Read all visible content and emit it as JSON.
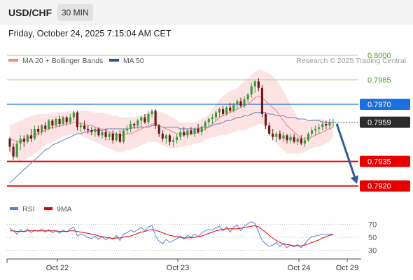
{
  "header": {
    "symbol": "USD/CHF",
    "timeframe": "30 MIN",
    "timestamp": "Friday, October 24, 2025 7:15:04 AM CET"
  },
  "chart_data": {
    "type": "candlestick",
    "legend": [
      {
        "name": "MA 20 + Bollinger Bands",
        "color": "#f28b82"
      },
      {
        "name": "MA 50",
        "color": "#2f4f8f"
      }
    ],
    "watermark": "Research © 2025 Trading Central",
    "x_ticks": [
      "Oct 22",
      "Oct 23",
      "Oct 24",
      "Oct 29"
    ],
    "ylim": [
      0.7913,
      0.8003
    ],
    "levels": [
      {
        "value": 0.8,
        "label": "0.8000",
        "style": "green-line"
      },
      {
        "value": 0.7985,
        "label": "0.7985",
        "style": "green-line"
      },
      {
        "value": 0.797,
        "label": "0.7970",
        "style": "blue-badge"
      },
      {
        "value": 0.7959,
        "label": "0.7959",
        "style": "current-price"
      },
      {
        "value": 0.7935,
        "label": "0.7935",
        "style": "red-badge"
      },
      {
        "value": 0.792,
        "label": "0.7920",
        "style": "red-badge"
      }
    ],
    "current_price": 0.7959,
    "target": 0.792,
    "candles": [
      [
        0.7949,
        0.795,
        0.7941,
        0.7944
      ],
      [
        0.7944,
        0.7946,
        0.7936,
        0.7938
      ],
      [
        0.7938,
        0.7948,
        0.7937,
        0.7946
      ],
      [
        0.7946,
        0.7951,
        0.7942,
        0.7949
      ],
      [
        0.7949,
        0.7951,
        0.7944,
        0.7947
      ],
      [
        0.7947,
        0.7952,
        0.7946,
        0.7951
      ],
      [
        0.7951,
        0.7955,
        0.7947,
        0.7949
      ],
      [
        0.7949,
        0.7957,
        0.7948,
        0.7955
      ],
      [
        0.7955,
        0.7957,
        0.7951,
        0.7953
      ],
      [
        0.7953,
        0.7958,
        0.7951,
        0.7957
      ],
      [
        0.7957,
        0.7959,
        0.7953,
        0.7955
      ],
      [
        0.7955,
        0.7961,
        0.7954,
        0.796
      ],
      [
        0.796,
        0.7961,
        0.7955,
        0.7957
      ],
      [
        0.7957,
        0.7962,
        0.7956,
        0.7961
      ],
      [
        0.7961,
        0.7963,
        0.7956,
        0.7958
      ],
      [
        0.7958,
        0.7963,
        0.7957,
        0.7962
      ],
      [
        0.7962,
        0.7963,
        0.7957,
        0.7959
      ],
      [
        0.7959,
        0.7964,
        0.7958,
        0.7962
      ],
      [
        0.7962,
        0.7966,
        0.796,
        0.7965
      ],
      [
        0.7965,
        0.7966,
        0.7954,
        0.7956
      ],
      [
        0.7956,
        0.7959,
        0.7953,
        0.7957
      ],
      [
        0.7957,
        0.796,
        0.7954,
        0.7955
      ],
      [
        0.7955,
        0.7957,
        0.7952,
        0.7954
      ],
      [
        0.7954,
        0.7956,
        0.7951,
        0.7953
      ],
      [
        0.7953,
        0.7956,
        0.795,
        0.7955
      ],
      [
        0.7955,
        0.7956,
        0.795,
        0.7951
      ],
      [
        0.7951,
        0.7954,
        0.7949,
        0.7953
      ],
      [
        0.7953,
        0.7955,
        0.7948,
        0.795
      ],
      [
        0.795,
        0.7953,
        0.7948,
        0.7952
      ],
      [
        0.7952,
        0.7954,
        0.7946,
        0.7948
      ],
      [
        0.7948,
        0.7953,
        0.7947,
        0.7952
      ],
      [
        0.7952,
        0.7954,
        0.7946,
        0.7947
      ],
      [
        0.7947,
        0.7955,
        0.7946,
        0.7954
      ],
      [
        0.7954,
        0.7957,
        0.7952,
        0.7955
      ],
      [
        0.7955,
        0.796,
        0.7953,
        0.7958
      ],
      [
        0.7958,
        0.7959,
        0.7955,
        0.7957
      ],
      [
        0.7957,
        0.7961,
        0.7955,
        0.796
      ],
      [
        0.796,
        0.7963,
        0.7956,
        0.7962
      ],
      [
        0.7962,
        0.7964,
        0.7958,
        0.7959
      ],
      [
        0.7959,
        0.7966,
        0.7958,
        0.7964
      ],
      [
        0.7964,
        0.7967,
        0.7962,
        0.7966
      ],
      [
        0.7966,
        0.7967,
        0.7955,
        0.7957
      ],
      [
        0.7957,
        0.7958,
        0.795,
        0.7952
      ],
      [
        0.7952,
        0.7954,
        0.7947,
        0.7949
      ],
      [
        0.7949,
        0.7952,
        0.7946,
        0.7951
      ],
      [
        0.7951,
        0.7952,
        0.7945,
        0.7947
      ],
      [
        0.7947,
        0.795,
        0.7944,
        0.7948
      ],
      [
        0.7948,
        0.7952,
        0.7946,
        0.795
      ],
      [
        0.795,
        0.7955,
        0.7948,
        0.7953
      ],
      [
        0.7953,
        0.7956,
        0.795,
        0.7951
      ],
      [
        0.7951,
        0.7955,
        0.7949,
        0.7954
      ],
      [
        0.7954,
        0.7956,
        0.7951,
        0.7952
      ],
      [
        0.7952,
        0.7956,
        0.795,
        0.7955
      ],
      [
        0.7955,
        0.7958,
        0.7952,
        0.7953
      ],
      [
        0.7953,
        0.7957,
        0.7951,
        0.7956
      ],
      [
        0.7956,
        0.796,
        0.7954,
        0.7959
      ],
      [
        0.7959,
        0.7962,
        0.7956,
        0.7961
      ],
      [
        0.7961,
        0.7964,
        0.7958,
        0.7962
      ],
      [
        0.7962,
        0.7966,
        0.796,
        0.7965
      ],
      [
        0.7965,
        0.7968,
        0.7962,
        0.7967
      ],
      [
        0.7967,
        0.7969,
        0.7963,
        0.7964
      ],
      [
        0.7964,
        0.7969,
        0.7963,
        0.7968
      ],
      [
        0.7968,
        0.7971,
        0.7965,
        0.7966
      ],
      [
        0.7966,
        0.7971,
        0.7965,
        0.797
      ],
      [
        0.797,
        0.7973,
        0.7967,
        0.7972
      ],
      [
        0.7972,
        0.7974,
        0.7968,
        0.7969
      ],
      [
        0.7969,
        0.7975,
        0.7968,
        0.7973
      ],
      [
        0.7973,
        0.7977,
        0.7971,
        0.7976
      ],
      [
        0.7976,
        0.7983,
        0.7974,
        0.7981
      ],
      [
        0.7981,
        0.7985,
        0.7977,
        0.7984
      ],
      [
        0.7984,
        0.7986,
        0.7978,
        0.798
      ],
      [
        0.798,
        0.7982,
        0.7962,
        0.7964
      ],
      [
        0.7964,
        0.7965,
        0.7955,
        0.7957
      ],
      [
        0.7957,
        0.7959,
        0.7951,
        0.7952
      ],
      [
        0.7952,
        0.7955,
        0.7948,
        0.795
      ],
      [
        0.795,
        0.7953,
        0.7947,
        0.7952
      ],
      [
        0.7952,
        0.7954,
        0.7948,
        0.7949
      ],
      [
        0.7949,
        0.7953,
        0.7947,
        0.7951
      ],
      [
        0.7951,
        0.7952,
        0.7946,
        0.7948
      ],
      [
        0.7948,
        0.7952,
        0.7946,
        0.795
      ],
      [
        0.795,
        0.7952,
        0.7946,
        0.7947
      ],
      [
        0.7947,
        0.795,
        0.7945,
        0.7949
      ],
      [
        0.7949,
        0.7951,
        0.7945,
        0.7946
      ],
      [
        0.7946,
        0.795,
        0.7944,
        0.7948
      ],
      [
        0.7948,
        0.7953,
        0.7947,
        0.7952
      ],
      [
        0.7952,
        0.7956,
        0.795,
        0.7954
      ],
      [
        0.7954,
        0.7957,
        0.7951,
        0.7955
      ],
      [
        0.7955,
        0.7958,
        0.7952,
        0.7956
      ],
      [
        0.7956,
        0.796,
        0.7954,
        0.7958
      ],
      [
        0.7958,
        0.796,
        0.7955,
        0.7957
      ],
      [
        0.7957,
        0.7961,
        0.7955,
        0.7959
      ],
      [
        0.7959,
        0.7961,
        0.7956,
        0.7959
      ]
    ],
    "ma20": [
      0.7949,
      0.7948,
      0.7947,
      0.7947,
      0.7948,
      0.7949,
      0.795,
      0.7951,
      0.7952,
      0.7953,
      0.7954,
      0.7955,
      0.7956,
      0.7956,
      0.7957,
      0.7957,
      0.7958,
      0.7958,
      0.7959,
      0.7959,
      0.7958,
      0.7958,
      0.7957,
      0.7957,
      0.7956,
      0.7955,
      0.7955,
      0.7954,
      0.7953,
      0.7952,
      0.7952,
      0.7951,
      0.7951,
      0.7952,
      0.7952,
      0.7953,
      0.7954,
      0.7955,
      0.7956,
      0.7957,
      0.7958,
      0.7958,
      0.7957,
      0.7956,
      0.7955,
      0.7954,
      0.7953,
      0.7952,
      0.7952,
      0.7952,
      0.7952,
      0.7952,
      0.7952,
      0.7953,
      0.7954,
      0.7955,
      0.7956,
      0.7958,
      0.796,
      0.7962,
      0.7963,
      0.7964,
      0.7965,
      0.7966,
      0.7967,
      0.7968,
      0.7969,
      0.797,
      0.7972,
      0.7974,
      0.7975,
      0.7974,
      0.7972,
      0.797,
      0.7968,
      0.7966,
      0.7963,
      0.796,
      0.7957,
      0.7955,
      0.7953,
      0.7951,
      0.7949,
      0.7949,
      0.7949,
      0.795,
      0.7951,
      0.7952,
      0.7953,
      0.7954,
      0.7955,
      0.7956
    ],
    "ma50": [
      0.7922,
      0.7924,
      0.7926,
      0.7928,
      0.793,
      0.7932,
      0.7934,
      0.7936,
      0.7938,
      0.794,
      0.7942,
      0.7943,
      0.7945,
      0.7946,
      0.7947,
      0.7948,
      0.7949,
      0.795,
      0.7951,
      0.7952,
      0.7952,
      0.7953,
      0.7953,
      0.7954,
      0.7954,
      0.7954,
      0.7954,
      0.7955,
      0.7955,
      0.7955,
      0.7955,
      0.7955,
      0.7955,
      0.7955,
      0.7955,
      0.7956,
      0.7956,
      0.7956,
      0.7956,
      0.7956,
      0.7957,
      0.7957,
      0.7957,
      0.7956,
      0.7956,
      0.7956,
      0.7956,
      0.7956,
      0.7955,
      0.7955,
      0.7955,
      0.7955,
      0.7955,
      0.7955,
      0.7956,
      0.7956,
      0.7956,
      0.7957,
      0.7958,
      0.7958,
      0.7959,
      0.796,
      0.796,
      0.7961,
      0.7962,
      0.7962,
      0.7963,
      0.7963,
      0.7964,
      0.7965,
      0.7965,
      0.7965,
      0.7965,
      0.7964,
      0.7964,
      0.7963,
      0.7963,
      0.7963,
      0.7962,
      0.7962,
      0.7962,
      0.7961,
      0.7961,
      0.7961,
      0.796,
      0.796,
      0.796,
      0.796,
      0.7959,
      0.7959,
      0.7959,
      0.7959
    ],
    "bb_upper": [
      0.7957,
      0.7958,
      0.7959,
      0.796,
      0.7961,
      0.7962,
      0.7963,
      0.7963,
      0.7964,
      0.7964,
      0.7964,
      0.7964,
      0.7965,
      0.7965,
      0.7965,
      0.7965,
      0.7965,
      0.7966,
      0.7966,
      0.7966,
      0.7966,
      0.7966,
      0.7966,
      0.7965,
      0.7965,
      0.7965,
      0.7965,
      0.7964,
      0.7964,
      0.7963,
      0.7963,
      0.7962,
      0.7962,
      0.7962,
      0.7962,
      0.7962,
      0.7963,
      0.7963,
      0.7964,
      0.7965,
      0.7966,
      0.7966,
      0.7965,
      0.7965,
      0.7964,
      0.7963,
      0.7962,
      0.796,
      0.7959,
      0.7959,
      0.7959,
      0.7959,
      0.7959,
      0.796,
      0.7961,
      0.7962,
      0.7964,
      0.7967,
      0.797,
      0.7973,
      0.7975,
      0.7977,
      0.7978,
      0.7979,
      0.798,
      0.7982,
      0.7984,
      0.7986,
      0.7988,
      0.799,
      0.7991,
      0.7991,
      0.799,
      0.7989,
      0.7987,
      0.7985,
      0.7982,
      0.7978,
      0.7974,
      0.797,
      0.7966,
      0.7962,
      0.796,
      0.796,
      0.796,
      0.7961,
      0.7961,
      0.7961,
      0.7961,
      0.796,
      0.796,
      0.796
    ],
    "bb_lower": [
      0.794,
      0.7938,
      0.7936,
      0.7935,
      0.7936,
      0.7937,
      0.7938,
      0.794,
      0.7941,
      0.7943,
      0.7945,
      0.7946,
      0.7947,
      0.7948,
      0.7949,
      0.795,
      0.7951,
      0.7951,
      0.7952,
      0.7952,
      0.7951,
      0.795,
      0.7949,
      0.7948,
      0.7947,
      0.7946,
      0.7945,
      0.7944,
      0.7943,
      0.7942,
      0.7941,
      0.7941,
      0.7941,
      0.7942,
      0.7942,
      0.7943,
      0.7944,
      0.7945,
      0.7946,
      0.7947,
      0.7947,
      0.7947,
      0.7946,
      0.7945,
      0.7944,
      0.7943,
      0.7943,
      0.7943,
      0.7944,
      0.7944,
      0.7945,
      0.7945,
      0.7946,
      0.7946,
      0.7947,
      0.7948,
      0.7949,
      0.795,
      0.795,
      0.7951,
      0.7951,
      0.7951,
      0.7952,
      0.7953,
      0.7954,
      0.7954,
      0.7954,
      0.7955,
      0.7956,
      0.7957,
      0.7958,
      0.7958,
      0.7955,
      0.7952,
      0.7949,
      0.7946,
      0.7944,
      0.7942,
      0.794,
      0.794,
      0.794,
      0.794,
      0.794,
      0.7941,
      0.7942,
      0.7943,
      0.7944,
      0.7944,
      0.7945,
      0.7946,
      0.7947,
      0.795
    ],
    "rsi": {
      "legend": [
        {
          "name": "RSI",
          "color": "#5b7fd6"
        },
        {
          "name": "9MA",
          "color": "#e60000"
        }
      ],
      "levels": [
        70,
        50,
        30
      ],
      "ylim": [
        22,
        78
      ],
      "rsi": [
        64,
        60,
        55,
        62,
        58,
        63,
        57,
        61,
        59,
        63,
        58,
        62,
        57,
        60,
        56,
        61,
        58,
        63,
        66,
        52,
        55,
        53,
        50,
        48,
        52,
        47,
        51,
        46,
        50,
        47,
        53,
        45,
        55,
        57,
        61,
        58,
        62,
        65,
        60,
        66,
        68,
        52,
        44,
        40,
        47,
        42,
        45,
        48,
        52,
        47,
        53,
        50,
        55,
        51,
        57,
        60,
        62,
        61,
        65,
        67,
        60,
        66,
        58,
        66,
        69,
        60,
        67,
        71,
        74,
        71,
        58,
        45,
        40,
        36,
        38,
        42,
        36,
        40,
        34,
        38,
        35,
        39,
        34,
        40,
        47,
        51,
        52,
        53,
        55,
        54,
        55,
        55
      ],
      "ma9": [
        60,
        60,
        59,
        59,
        59,
        60,
        60,
        60,
        60,
        60,
        60,
        60,
        60,
        60,
        59,
        59,
        59,
        60,
        60,
        59,
        58,
        57,
        56,
        55,
        54,
        52,
        51,
        50,
        49,
        48,
        49,
        49,
        50,
        51,
        52,
        54,
        56,
        58,
        59,
        61,
        62,
        61,
        59,
        57,
        55,
        53,
        52,
        51,
        50,
        49,
        49,
        49,
        50,
        51,
        52,
        54,
        56,
        58,
        60,
        61,
        62,
        63,
        63,
        63,
        63,
        64,
        65,
        66,
        67,
        68,
        66,
        62,
        58,
        53,
        49,
        45,
        42,
        40,
        39,
        38,
        37,
        37,
        37,
        38,
        40,
        42,
        44,
        46,
        49,
        51,
        53,
        54
      ]
    }
  }
}
